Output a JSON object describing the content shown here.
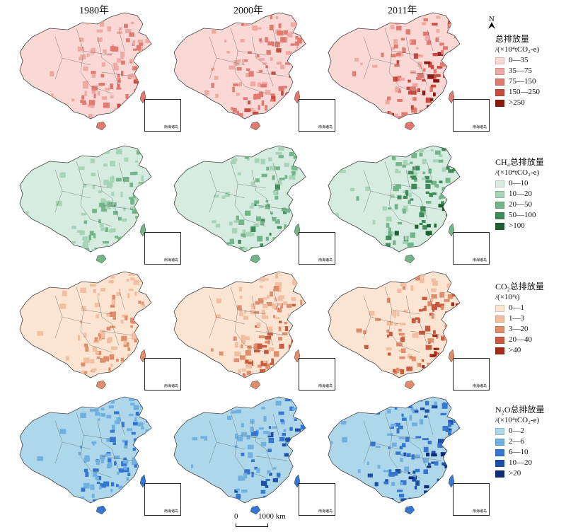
{
  "years": [
    "1980年",
    "2000年",
    "2011年"
  ],
  "north_label": "N",
  "scale_labels": [
    "0",
    "1000 km"
  ],
  "inset_label": "南海诸岛",
  "legends": [
    {
      "title": "总排放量",
      "unit": "/(×10⁴tCO₂-e)",
      "items": [
        "0—35",
        "35—75",
        "75—150",
        "150—250",
        ">250"
      ],
      "colors": [
        "#f9d8d5",
        "#efa9a3",
        "#e07970",
        "#c94b3f",
        "#8c1a12"
      ],
      "base_color": "#f9d8d5"
    },
    {
      "title": "CH₄总排放量",
      "unit": "/(×10⁴tCO₂-e)",
      "items": [
        "0—10",
        "10—20",
        "20—50",
        "50—100",
        ">100"
      ],
      "colors": [
        "#d6ece0",
        "#a7d3b6",
        "#73b58a",
        "#3e8a58",
        "#1d6132"
      ],
      "base_color": "#d6ece0"
    },
    {
      "title": "CO₂总排放量",
      "unit": "/(×10⁴t)",
      "items": [
        "0—1",
        "1—3",
        "3—20",
        "20—40",
        ">40"
      ],
      "colors": [
        "#fbe4d2",
        "#f1bea1",
        "#e08d6c",
        "#c95a3e",
        "#a52b17"
      ],
      "base_color": "#fbe4d2"
    },
    {
      "title": "N₂O总排放量",
      "unit": "/(×10⁴tCO₂-e)",
      "items": [
        "0—2",
        "2—6",
        "6—10",
        "10—20",
        ">20"
      ],
      "colors": [
        "#aed8ea",
        "#6fb0e0",
        "#3577d0",
        "#1d4fa8",
        "#0f2d7a"
      ],
      "base_color": "#aed8ea"
    }
  ]
}
